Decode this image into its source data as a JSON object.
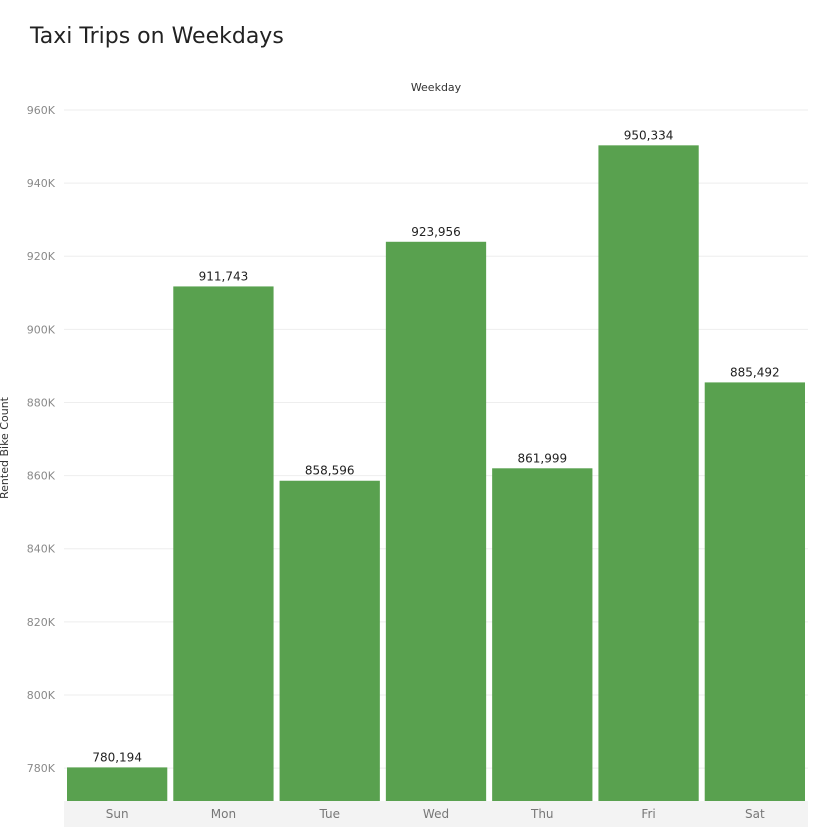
{
  "chart_data": {
    "type": "bar",
    "title": "Taxi Trips on Weekdays",
    "column_header": "Weekday",
    "ylabel": "Rented Bike Count",
    "categories": [
      "Sun",
      "Mon",
      "Tue",
      "Wed",
      "Thu",
      "Fri",
      "Sat"
    ],
    "values": [
      780194,
      911743,
      858596,
      923956,
      861999,
      950334,
      885492
    ],
    "value_labels": [
      "780,194",
      "911,743",
      "858,596",
      "923,956",
      "861,999",
      "950,334",
      "885,492"
    ],
    "ylim": [
      771000,
      960000
    ],
    "yticks": [
      780000,
      800000,
      820000,
      840000,
      860000,
      880000,
      900000,
      920000,
      940000,
      960000
    ],
    "ytick_labels": [
      "780K",
      "800K",
      "820K",
      "840K",
      "860K",
      "880K",
      "900K",
      "920K",
      "940K",
      "960K"
    ],
    "grid": true,
    "bar_color": "#59a14f"
  }
}
